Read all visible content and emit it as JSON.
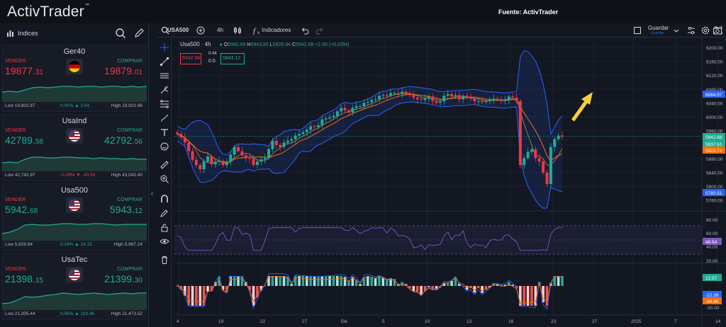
{
  "app": {
    "logo": "ActivTrader",
    "logo_mark": "™",
    "source": "Fuente: ActivTrader"
  },
  "sidebar": {
    "header_label": "Indices",
    "cards": [
      {
        "name": "Ger40",
        "sell_label": "VENDER",
        "buy_label": "COMPRAR",
        "sell_main": "19877.",
        "sell_small": "31",
        "buy_main": "19879.",
        "buy_small": "01",
        "low": "Low 19,802.87",
        "change": "0.01%",
        "change_pts": "2.04",
        "change_dir": "up",
        "high": "High 19,931.66",
        "flag": "de",
        "sell_color": "#f23645",
        "buy_color": "#f23645"
      },
      {
        "name": "UsaInd",
        "sell_label": "VENDER",
        "buy_label": "COMPRAR",
        "sell_main": "42789.",
        "sell_small": "58",
        "buy_main": "42792.",
        "buy_small": "56",
        "low": "Low 42,742.97",
        "change": "-0.09%",
        "change_pts": "-40.54",
        "change_dir": "down",
        "high": "High 43,042.40",
        "flag": "us",
        "sell_color": "#22ab94",
        "buy_color": "#22ab94"
      },
      {
        "name": "Usa500",
        "sell_label": "VENDER",
        "buy_label": "COMPRAR",
        "sell_main": "5942.",
        "sell_small": "68",
        "buy_main": "5943.",
        "buy_small": "12",
        "low": "Low 5,926.94",
        "change": "0.24%",
        "change_pts": "14.15",
        "change_dir": "up",
        "high": "High 5,967.24",
        "flag": "us",
        "sell_color": "#22ab94",
        "buy_color": "#22ab94"
      },
      {
        "name": "UsaTec",
        "sell_label": "VENDER",
        "buy_label": "COMPRAR",
        "sell_main": "21398.",
        "sell_small": "15",
        "buy_main": "21399.",
        "buy_small": "30",
        "low": "Low 21,305.44",
        "change": "0.56%",
        "change_pts": "119.46",
        "change_dir": "up",
        "high": "High 21,473.52",
        "flag": "us",
        "sell_color": "#22ab94",
        "buy_color": "#22ab94"
      }
    ]
  },
  "toolbar": {
    "symbol": "USA500",
    "interval": "4h",
    "indicators": "Indicadores",
    "save": "Guardar",
    "save_sub": "Guardar"
  },
  "legend": {
    "symbol": "Usa500 · 4h",
    "o_label": "O",
    "o": "5940.68",
    "h_label": "H",
    "h": "5943.85",
    "l_label": "L",
    "l": "5926.94",
    "c_label": "C",
    "c": "5942.68",
    "change": "+2.00 (+0.03%)",
    "sell_box": "5942.68",
    "spread_top": "0.44",
    "spread_bottom": "0.5",
    "buy_box": "5943.12"
  },
  "chart_data": {
    "type": "candlestick",
    "symbol": "Usa500",
    "interval": "4h",
    "x_tick_labels": [
      "4",
      "19",
      "22",
      "27",
      "Dic",
      "5",
      "10",
      "13",
      "18",
      "23",
      "27",
      "2025",
      "7",
      "14"
    ],
    "y_tick_labels": [
      "6200.00",
      "6160.00",
      "6120.00",
      "6080.00",
      "6040.00",
      "6000.00",
      "5960.00",
      "5920.00",
      "5880.00",
      "5840.00",
      "5800.00",
      "5760.00"
    ],
    "price_badges": [
      {
        "label": "6064.97",
        "color": "#2962ff"
      },
      {
        "label": "5942.68",
        "color": "#22ab94"
      },
      {
        "label": "5937.61",
        "color": "#22ab94"
      },
      {
        "label": "5922.74",
        "color": "#ff6d00"
      },
      {
        "label": "5780.51",
        "color": "#2962ff"
      }
    ],
    "rsi_ticks": [
      "80.00",
      "60.00",
      "40.00",
      "20.00"
    ],
    "rsi_badge": "48.54",
    "macd_ticks": [
      "12.57",
      "-22.39",
      "-34.95",
      "-50.00"
    ],
    "macd_badges": [
      {
        "label": "12.57",
        "color": "#22ab94"
      },
      {
        "label": "-22.39",
        "color": "#2962ff"
      },
      {
        "label": "-34.95",
        "color": "#ff6d00"
      }
    ],
    "closes": [
      5950,
      5940,
      5925,
      5900,
      5875,
      5860,
      5848,
      5870,
      5885,
      5862,
      5870,
      5872,
      5860,
      5870,
      5890,
      5912,
      5900,
      5888,
      5880,
      5878,
      5860,
      5870,
      5876,
      5880,
      5906,
      5930,
      5918,
      5912,
      5925,
      5930,
      5935,
      5945,
      5950,
      5955,
      5962,
      5972,
      5970,
      5975,
      5992,
      5995,
      5998,
      6002,
      6015,
      6025,
      6018,
      6012,
      6025,
      6030,
      6030,
      6040,
      6042,
      6048,
      6050,
      6060,
      6062,
      6060,
      6068,
      6068,
      6065,
      6072,
      6065,
      6062,
      6055,
      6050,
      6048,
      6052,
      6058,
      6045,
      6040,
      6044,
      6060,
      6065,
      6058,
      6062,
      6050,
      6060,
      6055,
      6052,
      6045,
      6045,
      6042,
      6045,
      6048,
      6052,
      6050,
      6045,
      6048,
      6058,
      6055,
      6045,
      5860,
      5880,
      5898,
      5905,
      5880,
      5870,
      5838,
      5805,
      5912,
      5935,
      5945,
      5942
    ],
    "colors": {
      "up": "#22ab94",
      "down": "#f23645",
      "band": "#2962ff",
      "ma": "#ff6d00",
      "rsi": "#7e57c2",
      "arrow": "#f4d03f"
    }
  }
}
